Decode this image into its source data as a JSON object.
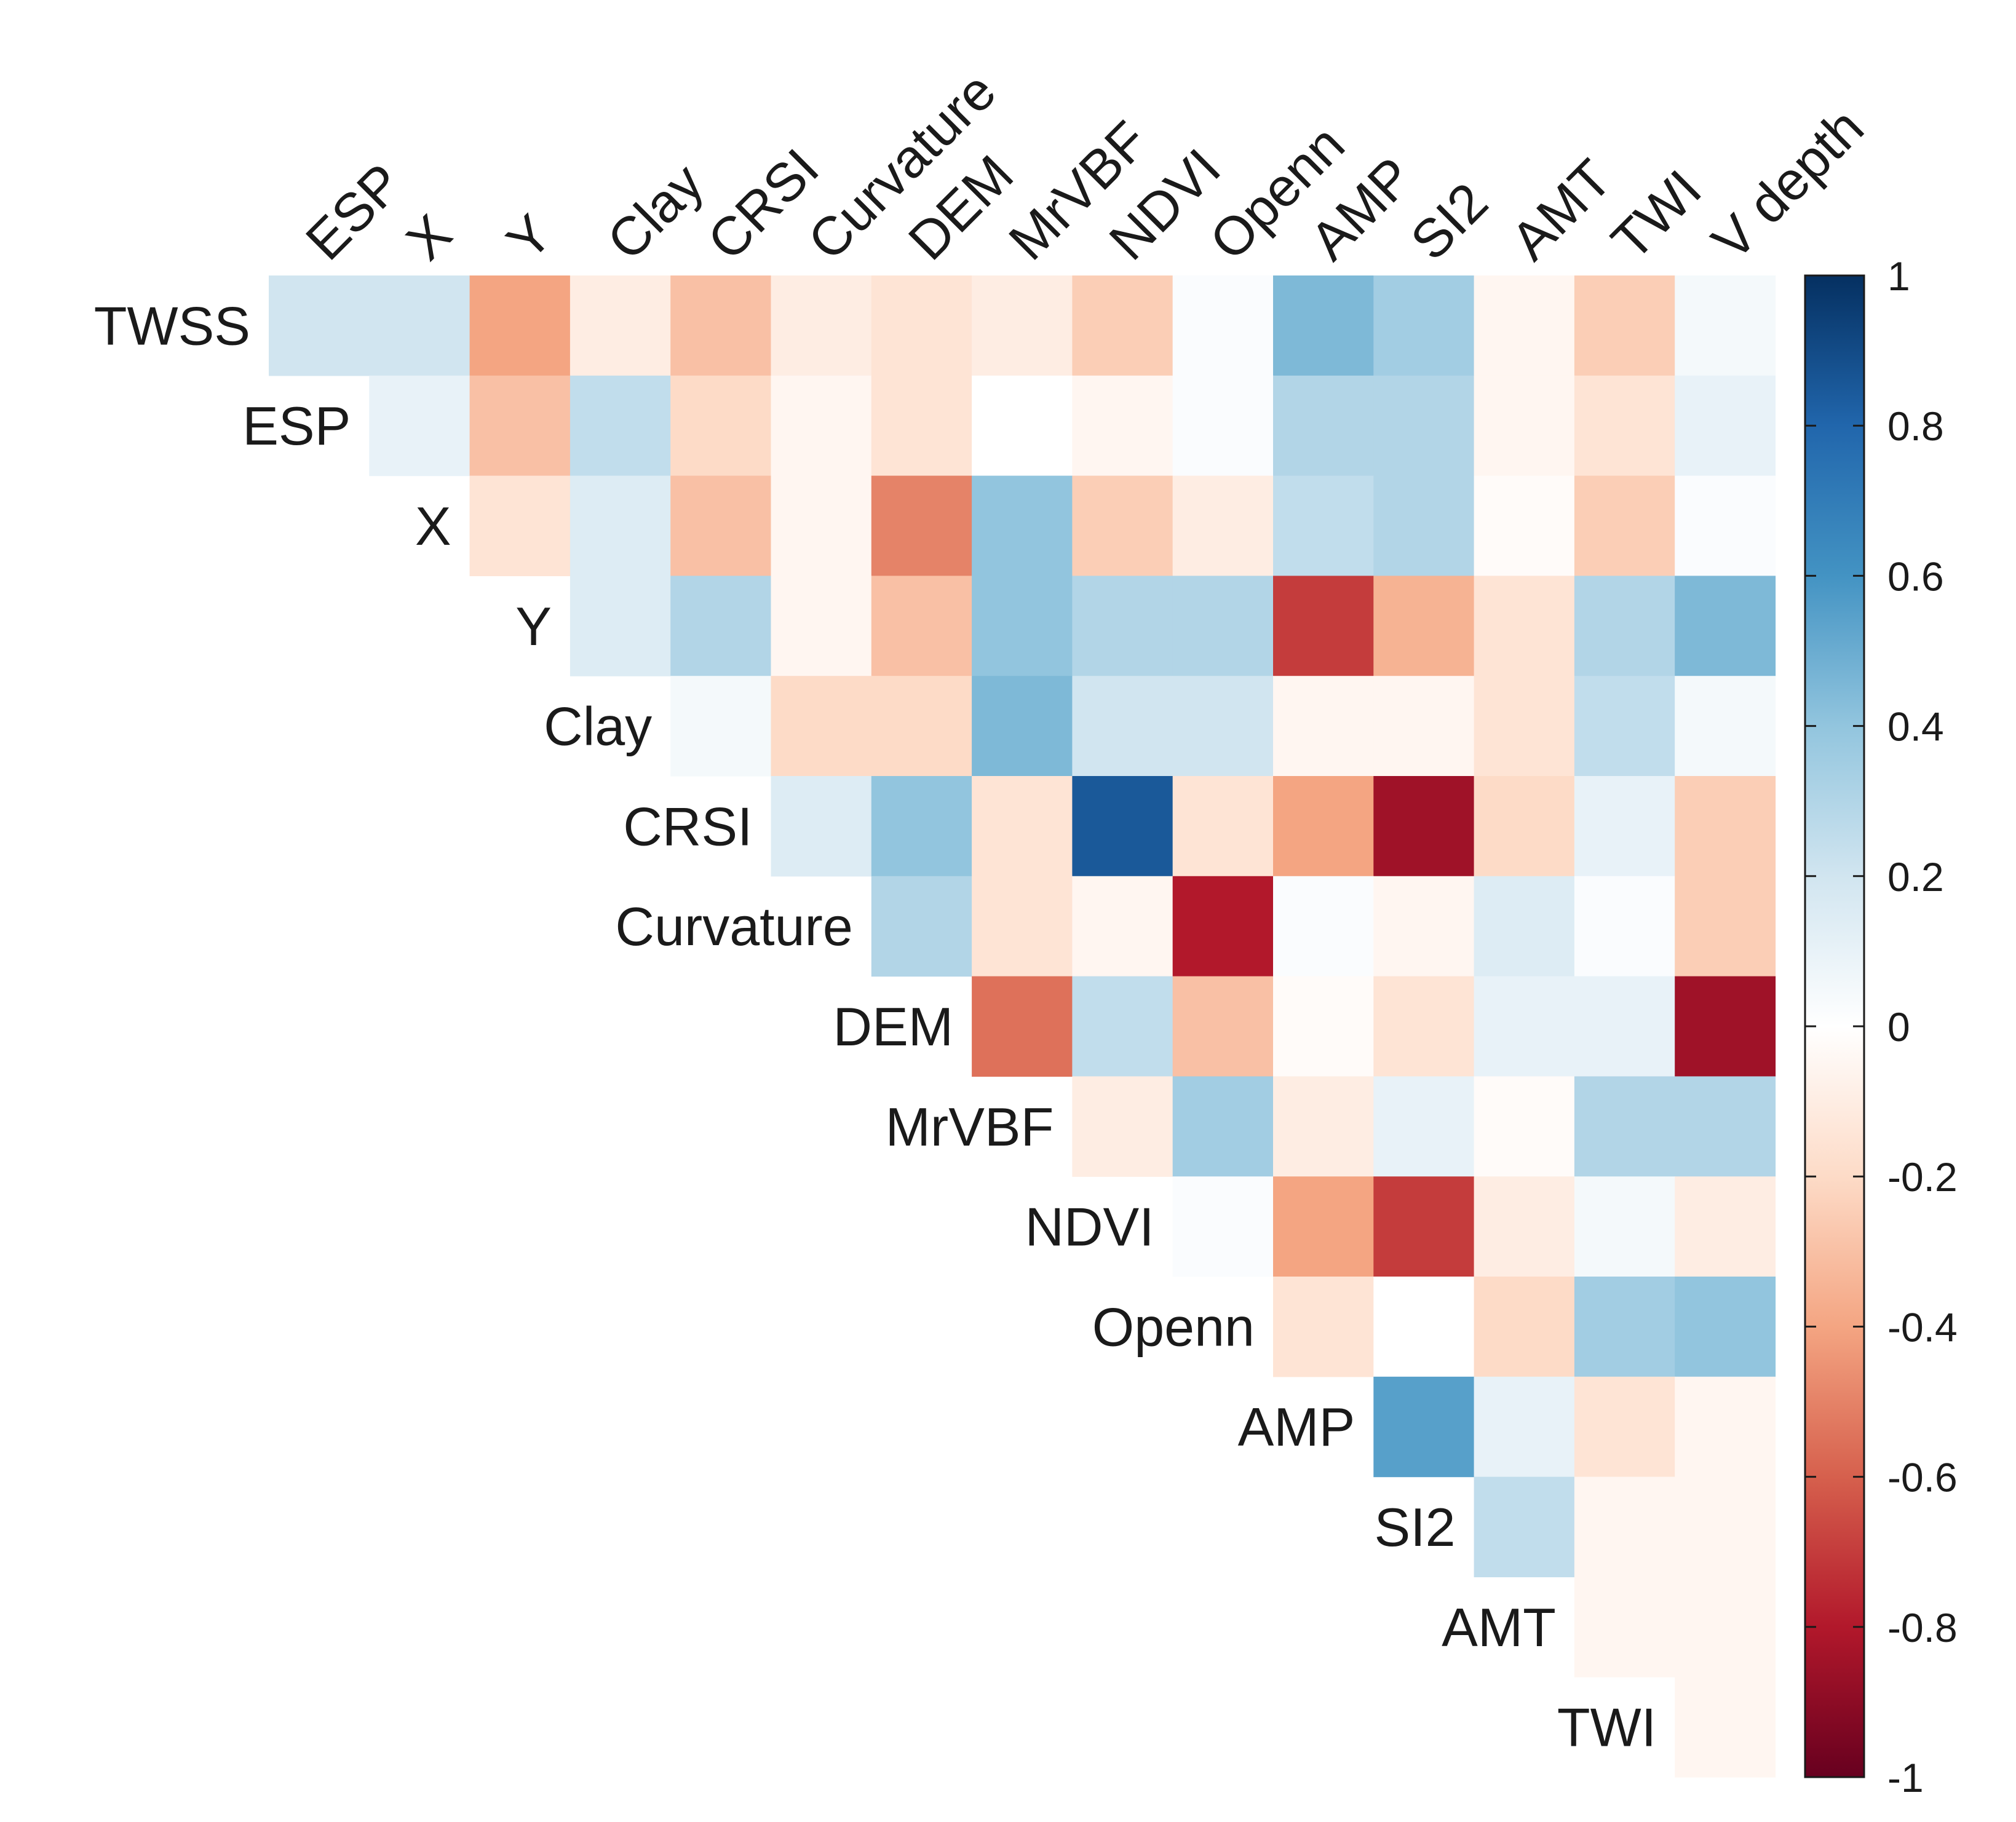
{
  "chart_data": {
    "type": "heatmap",
    "title": "",
    "rows": [
      "TWSS",
      "ESP",
      "X",
      "Y",
      "Clay",
      "CRSI",
      "Curvature",
      "DEM",
      "MrVBF",
      "NDVI",
      "Openn",
      "AMP",
      "SI2",
      "AMT",
      "TWI"
    ],
    "columns": [
      "ESP",
      "X",
      "Y",
      "Clay",
      "CRSI",
      "Curvature",
      "DEM",
      "MrVBF",
      "NDVI",
      "Openn",
      "AMP",
      "SI2",
      "AMT",
      "TWI",
      "V depth"
    ],
    "values": [
      [
        0.2,
        0.2,
        -0.4,
        -0.1,
        -0.3,
        -0.1,
        -0.15,
        -0.1,
        -0.25,
        0.02,
        0.45,
        0.35,
        -0.05,
        -0.25,
        0.05
      ],
      [
        0.1,
        -0.3,
        0.25,
        -0.2,
        -0.05,
        -0.15,
        0.0,
        -0.05,
        0.02,
        0.3,
        0.3,
        -0.05,
        -0.15,
        0.1
      ],
      [
        -0.15,
        0.15,
        -0.3,
        -0.05,
        -0.5,
        0.4,
        -0.25,
        -0.1,
        0.25,
        0.3,
        -0.02,
        -0.25,
        0.02
      ],
      [
        0.15,
        0.3,
        -0.05,
        -0.3,
        0.4,
        0.3,
        0.3,
        -0.7,
        -0.35,
        -0.15,
        0.3,
        0.45
      ],
      [
        0.05,
        -0.2,
        -0.2,
        0.45,
        0.2,
        0.2,
        -0.05,
        -0.05,
        -0.15,
        0.25,
        0.05
      ],
      [
        0.15,
        0.4,
        -0.15,
        0.85,
        -0.15,
        -0.4,
        -0.85,
        -0.2,
        0.1,
        -0.25
      ],
      [
        0.3,
        -0.15,
        -0.05,
        -0.8,
        0.02,
        -0.05,
        0.15,
        0.02,
        -0.25
      ],
      [
        -0.55,
        0.25,
        -0.3,
        -0.02,
        -0.15,
        0.1,
        0.1,
        -0.85
      ],
      [
        -0.1,
        0.35,
        -0.1,
        0.1,
        -0.02,
        0.3,
        0.3
      ],
      [
        0.02,
        -0.4,
        -0.7,
        -0.1,
        0.05,
        -0.1
      ],
      [
        -0.15,
        0.0,
        -0.2,
        0.35,
        0.4
      ],
      [
        0.55,
        0.1,
        -0.15,
        -0.05
      ],
      [
        0.25,
        -0.05,
        -0.05
      ],
      [
        -0.05,
        -0.05
      ],
      [
        -0.05
      ]
    ],
    "colorbar": {
      "range": [
        -1,
        1
      ],
      "ticks": [
        "1",
        "0.8",
        "0.6",
        "0.4",
        "0.2",
        "0",
        "-0.2",
        "-0.4",
        "-0.6",
        "-0.8",
        "-1"
      ],
      "tick_values": [
        1,
        0.8,
        0.6,
        0.4,
        0.2,
        0,
        -0.2,
        -0.4,
        -0.6,
        -0.8,
        -1
      ],
      "colors": [
        "#67001F",
        "#B2182B",
        "#D6604D",
        "#F4A582",
        "#FDDBC7",
        "#FFFFFF",
        "#D1E5F0",
        "#92C5DE",
        "#4393C3",
        "#2166AC",
        "#053061"
      ]
    },
    "legend_position": "right",
    "grid": false
  }
}
